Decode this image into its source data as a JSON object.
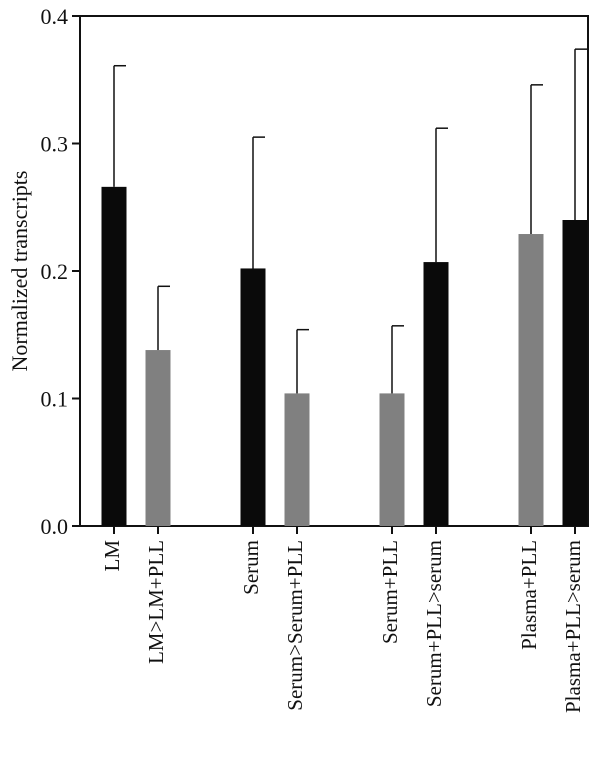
{
  "chart_data": {
    "type": "bar",
    "ylabel": "Normalized transcripts",
    "xlabel": "",
    "ylim": [
      0,
      0.4
    ],
    "yticks": [
      0.0,
      0.1,
      0.2,
      0.3,
      0.4
    ],
    "ytick_labels": [
      "0.0",
      "0.1",
      "0.2",
      "0.3",
      "0.4"
    ],
    "grid": false,
    "legend": "none",
    "colors": {
      "black": "#0a0a0a",
      "gray": "#808080"
    },
    "groups": [
      [
        0,
        1
      ],
      [
        2,
        3
      ],
      [
        4,
        5
      ],
      [
        6,
        7
      ]
    ],
    "bars": [
      {
        "label": "LM",
        "value": 0.266,
        "error": 0.095,
        "color": "black"
      },
      {
        "label": "LM>LM+PLL",
        "value": 0.138,
        "error": 0.05,
        "color": "gray"
      },
      {
        "label": "Serum",
        "value": 0.202,
        "error": 0.103,
        "color": "black"
      },
      {
        "label": "Serum>Serum+PLL",
        "value": 0.104,
        "error": 0.05,
        "color": "gray"
      },
      {
        "label": "Serum+PLL",
        "value": 0.104,
        "error": 0.053,
        "color": "gray"
      },
      {
        "label": "Serum+PLL>serum",
        "value": 0.207,
        "error": 0.105,
        "color": "black"
      },
      {
        "label": "Plasma+PLL",
        "value": 0.229,
        "error": 0.117,
        "color": "gray"
      },
      {
        "label": "Plasma+PLL>serum",
        "value": 0.24,
        "error": 0.134,
        "color": "black"
      }
    ]
  }
}
